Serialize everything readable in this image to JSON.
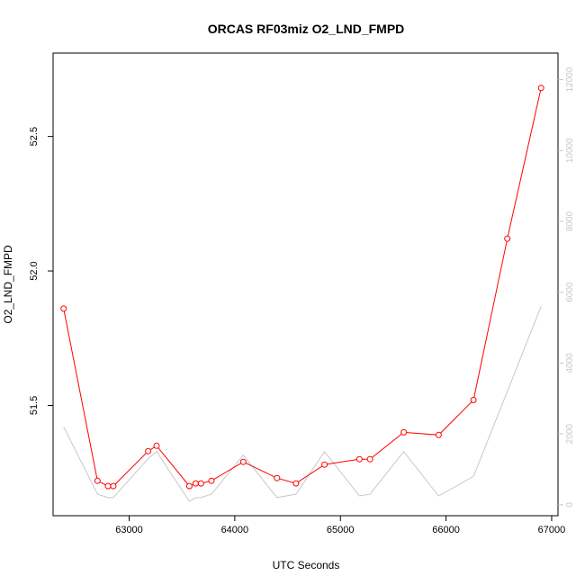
{
  "chart_data": {
    "type": "line",
    "title": "ORCAS RF03miz O2_LND_FMPD",
    "xlabel": "UTC Seconds",
    "ylabel": "O2_LND_FMPD",
    "xlim": [
      62280,
      67060
    ],
    "ylim": [
      51.09,
      52.81
    ],
    "y2lim": [
      -310,
      12750
    ],
    "x_ticks": [
      63000,
      64000,
      65000,
      66000,
      67000
    ],
    "y_ticks": [
      51.5,
      52.0,
      52.5
    ],
    "y_tick_labels": [
      "51.5",
      "52.0",
      "52.5"
    ],
    "y2_ticks": [
      0,
      2000,
      4000,
      6000,
      8000,
      10000,
      12000
    ],
    "grid": false,
    "colors": {
      "primary": "#ff0000",
      "secondary": "#c8c8c8",
      "axis": "#000000"
    },
    "series": [
      {
        "axis": "left",
        "style": "line+points",
        "color": "#ff0000",
        "x": [
          62380,
          62700,
          62800,
          62850,
          63180,
          63260,
          63570,
          63630,
          63680,
          63780,
          64080,
          64400,
          64580,
          64850,
          65180,
          65280,
          65600,
          65930,
          66260,
          66580,
          66900
        ],
        "y": [
          51.86,
          51.22,
          51.2,
          51.2,
          51.33,
          51.35,
          51.2,
          51.21,
          51.21,
          51.22,
          51.29,
          51.23,
          51.21,
          51.28,
          51.3,
          51.3,
          51.4,
          51.39,
          51.52,
          52.12,
          52.68
        ]
      },
      {
        "axis": "right",
        "style": "line",
        "color": "#c8c8c8",
        "x": [
          62380,
          62700,
          62800,
          62850,
          63180,
          63260,
          63570,
          63630,
          63680,
          63780,
          64080,
          64400,
          64580,
          64850,
          65180,
          65280,
          65600,
          65930,
          66260,
          66580,
          66900
        ],
        "y": [
          2200,
          300,
          200,
          200,
          1300,
          1500,
          100,
          200,
          200,
          300,
          1400,
          200,
          300,
          1500,
          250,
          300,
          1500,
          250,
          800,
          3200,
          5600
        ]
      }
    ]
  }
}
